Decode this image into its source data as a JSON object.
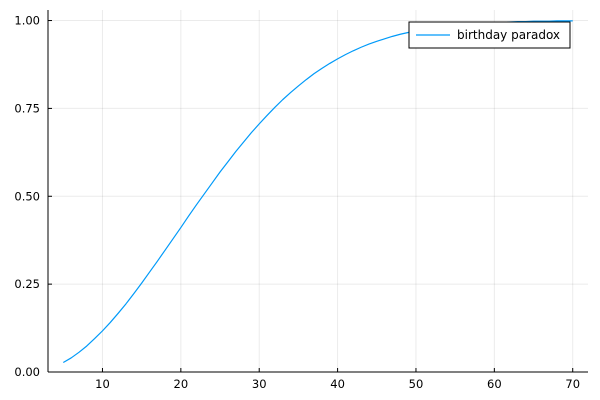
{
  "chart_data": {
    "type": "line",
    "title": "",
    "xlabel": "",
    "ylabel": "",
    "xlim": [
      3.05,
      71.95
    ],
    "ylim": [
      0.0,
      1.03
    ],
    "x_ticks": [
      10,
      20,
      30,
      40,
      50,
      60,
      70
    ],
    "x_tick_labels": [
      "10",
      "20",
      "30",
      "40",
      "50",
      "60",
      "70"
    ],
    "y_ticks": [
      0.0,
      0.25,
      0.5,
      0.75,
      1.0
    ],
    "y_tick_labels": [
      "0.00",
      "0.25",
      "0.50",
      "0.75",
      "1.00"
    ],
    "grid": true,
    "legend_position": "top-right",
    "series": [
      {
        "name": "birthday paradox",
        "color": "#009af9",
        "x": [
          5,
          6,
          7,
          8,
          9,
          10,
          11,
          12,
          13,
          14,
          15,
          16,
          17,
          18,
          19,
          20,
          21,
          22,
          23,
          24,
          25,
          26,
          27,
          28,
          29,
          30,
          31,
          32,
          33,
          34,
          35,
          36,
          37,
          38,
          39,
          40,
          41,
          42,
          43,
          44,
          45,
          46,
          47,
          48,
          49,
          50,
          51,
          52,
          53,
          54,
          55,
          56,
          57,
          58,
          59,
          60,
          61,
          62,
          63,
          64,
          65,
          66,
          67,
          68,
          69,
          70
        ],
        "values": [
          0.027,
          0.04,
          0.056,
          0.074,
          0.095,
          0.117,
          0.141,
          0.167,
          0.194,
          0.223,
          0.253,
          0.284,
          0.315,
          0.347,
          0.379,
          0.411,
          0.444,
          0.476,
          0.507,
          0.538,
          0.569,
          0.598,
          0.627,
          0.654,
          0.681,
          0.706,
          0.73,
          0.753,
          0.775,
          0.795,
          0.814,
          0.832,
          0.849,
          0.864,
          0.878,
          0.891,
          0.903,
          0.914,
          0.924,
          0.933,
          0.941,
          0.948,
          0.955,
          0.961,
          0.966,
          0.97,
          0.974,
          0.978,
          0.981,
          0.984,
          0.986,
          0.988,
          0.99,
          0.992,
          0.993,
          0.994,
          0.995,
          0.996,
          0.997,
          0.997,
          0.998,
          0.998,
          0.998,
          0.999,
          0.999,
          0.999
        ]
      }
    ]
  }
}
